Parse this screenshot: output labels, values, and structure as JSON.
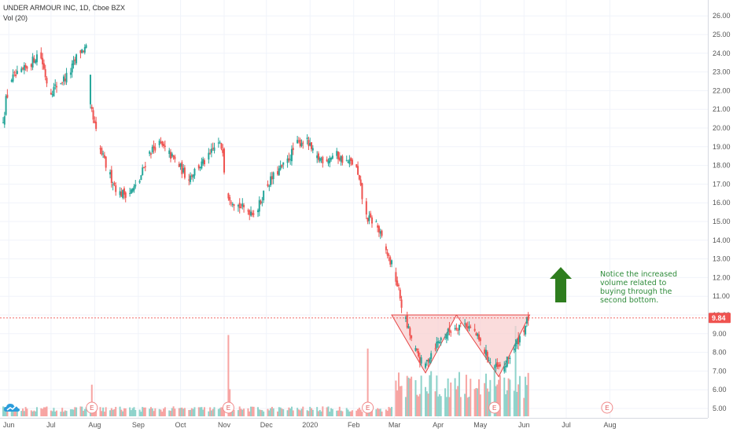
{
  "chart_data": {
    "type": "candlestick",
    "title": "UNDER ARMOUR INC, 1D, Cboe BZX",
    "volume_label": "Vol (20)",
    "y_ticks": [
      "5.00",
      "6.00",
      "7.00",
      "8.00",
      "9.00",
      "10.00",
      "11.00",
      "12.00",
      "13.00",
      "14.00",
      "15.00",
      "16.00",
      "17.00",
      "18.00",
      "19.00",
      "20.00",
      "21.00",
      "22.00",
      "23.00",
      "24.00",
      "25.00",
      "26.00"
    ],
    "x_ticks": [
      "Jun",
      "Jul",
      "Aug",
      "Sep",
      "Oct",
      "Nov",
      "Dec",
      "2020",
      "Feb",
      "Mar",
      "Apr",
      "May",
      "Jun",
      "Jul",
      "Aug"
    ],
    "ylim": [
      4.6,
      26.3
    ],
    "last_price": 9.84,
    "last_price_label": "9.84",
    "annotation": "Notice the increased volume related to buying through the second bottom.",
    "annotation_lines": [
      "Notice the increased",
      "volume related to",
      "buying through the",
      "second bottom."
    ],
    "earnings_marker": "E",
    "earnings_dates": [
      "2019-07-30",
      "2019-11-04",
      "2020-02-11",
      "2020-05-11",
      "2020-07-30"
    ],
    "pattern": "double bottom",
    "double_bottom_triangles": [
      {
        "from": "2020-02-28",
        "low": "2020-03-23",
        "to": "2020-04-14",
        "top_price": 10.0,
        "bottom_price": 6.9
      },
      {
        "from": "2020-04-14",
        "low": "2020-05-14",
        "to": "2020-06-05",
        "top_price": 10.0,
        "bottom_price": 6.7
      }
    ],
    "price_path": [
      {
        "date": "2019-05-28",
        "close": 20.2
      },
      {
        "date": "2019-06-03",
        "close": 22.6
      },
      {
        "date": "2019-06-10",
        "close": 22.9
      },
      {
        "date": "2019-06-17",
        "close": 23.4
      },
      {
        "date": "2019-06-24",
        "close": 24.1
      },
      {
        "date": "2019-07-01",
        "close": 21.9
      },
      {
        "date": "2019-07-08",
        "close": 22.4
      },
      {
        "date": "2019-07-15",
        "close": 22.9
      },
      {
        "date": "2019-07-22",
        "close": 24.1
      },
      {
        "date": "2019-07-29",
        "close": 24.3
      },
      {
        "date": "2019-07-30",
        "close": 21.1
      },
      {
        "date": "2019-08-05",
        "close": 19.0
      },
      {
        "date": "2019-08-12",
        "close": 17.6
      },
      {
        "date": "2019-08-19",
        "close": 16.5
      },
      {
        "date": "2019-08-26",
        "close": 16.5
      },
      {
        "date": "2019-09-02",
        "close": 17.0
      },
      {
        "date": "2019-09-09",
        "close": 18.6
      },
      {
        "date": "2019-09-16",
        "close": 19.2
      },
      {
        "date": "2019-09-23",
        "close": 18.7
      },
      {
        "date": "2019-09-30",
        "close": 18.1
      },
      {
        "date": "2019-10-07",
        "close": 17.3
      },
      {
        "date": "2019-10-14",
        "close": 17.9
      },
      {
        "date": "2019-10-21",
        "close": 18.3
      },
      {
        "date": "2019-10-28",
        "close": 19.2
      },
      {
        "date": "2019-11-01",
        "close": 18.9
      },
      {
        "date": "2019-11-04",
        "close": 16.5
      },
      {
        "date": "2019-11-11",
        "close": 15.9
      },
      {
        "date": "2019-11-18",
        "close": 15.6
      },
      {
        "date": "2019-11-25",
        "close": 15.5
      },
      {
        "date": "2019-12-02",
        "close": 16.9
      },
      {
        "date": "2019-12-09",
        "close": 17.6
      },
      {
        "date": "2019-12-16",
        "close": 18.1
      },
      {
        "date": "2019-12-23",
        "close": 19.1
      },
      {
        "date": "2019-12-30",
        "close": 19.4
      },
      {
        "date": "2020-01-06",
        "close": 18.4
      },
      {
        "date": "2020-01-13",
        "close": 18.3
      },
      {
        "date": "2020-01-20",
        "close": 18.6
      },
      {
        "date": "2020-01-27",
        "close": 18.2
      },
      {
        "date": "2020-02-03",
        "close": 18.1
      },
      {
        "date": "2020-02-11",
        "close": 15.2
      },
      {
        "date": "2020-02-18",
        "close": 14.9
      },
      {
        "date": "2020-02-24",
        "close": 13.6
      },
      {
        "date": "2020-03-02",
        "close": 12.3
      },
      {
        "date": "2020-03-05",
        "close": 11.3
      },
      {
        "date": "2020-03-09",
        "close": 9.9
      },
      {
        "date": "2020-03-16",
        "close": 8.2
      },
      {
        "date": "2020-03-23",
        "close": 7.2
      },
      {
        "date": "2020-03-30",
        "close": 8.3
      },
      {
        "date": "2020-04-06",
        "close": 8.9
      },
      {
        "date": "2020-04-13",
        "close": 9.3
      },
      {
        "date": "2020-04-20",
        "close": 9.6
      },
      {
        "date": "2020-04-27",
        "close": 9.2
      },
      {
        "date": "2020-05-04",
        "close": 8.2
      },
      {
        "date": "2020-05-11",
        "close": 7.2
      },
      {
        "date": "2020-05-18",
        "close": 7.1
      },
      {
        "date": "2020-05-25",
        "close": 8.1
      },
      {
        "date": "2020-06-01",
        "close": 9.1
      },
      {
        "date": "2020-06-05",
        "close": 9.84
      }
    ],
    "volume_spikes": [
      {
        "date": "2019-07-30",
        "level": 0.35
      },
      {
        "date": "2019-11-04",
        "level": 0.9
      },
      {
        "date": "2019-11-05",
        "level": 0.3
      },
      {
        "date": "2020-02-11",
        "level": 0.75
      },
      {
        "date": "2020-03-20",
        "level": 0.45
      },
      {
        "date": "2020-05-11",
        "level": 0.5
      },
      {
        "date": "2020-05-26",
        "level": 1.0
      }
    ]
  },
  "colors": {
    "up": "#26a69a",
    "down": "#ef5350",
    "up_volume": "#8fd3cb",
    "down_volume": "#f7a4a2",
    "pattern_fill": "#f8d0d0",
    "pattern_line": "#e64545",
    "annotation": "#2e8b3a",
    "arrow": "#2e7d1e",
    "price_line": "#ef5350",
    "grid": "#f0f3fa"
  },
  "logo": "tradingview-cloud-icon"
}
